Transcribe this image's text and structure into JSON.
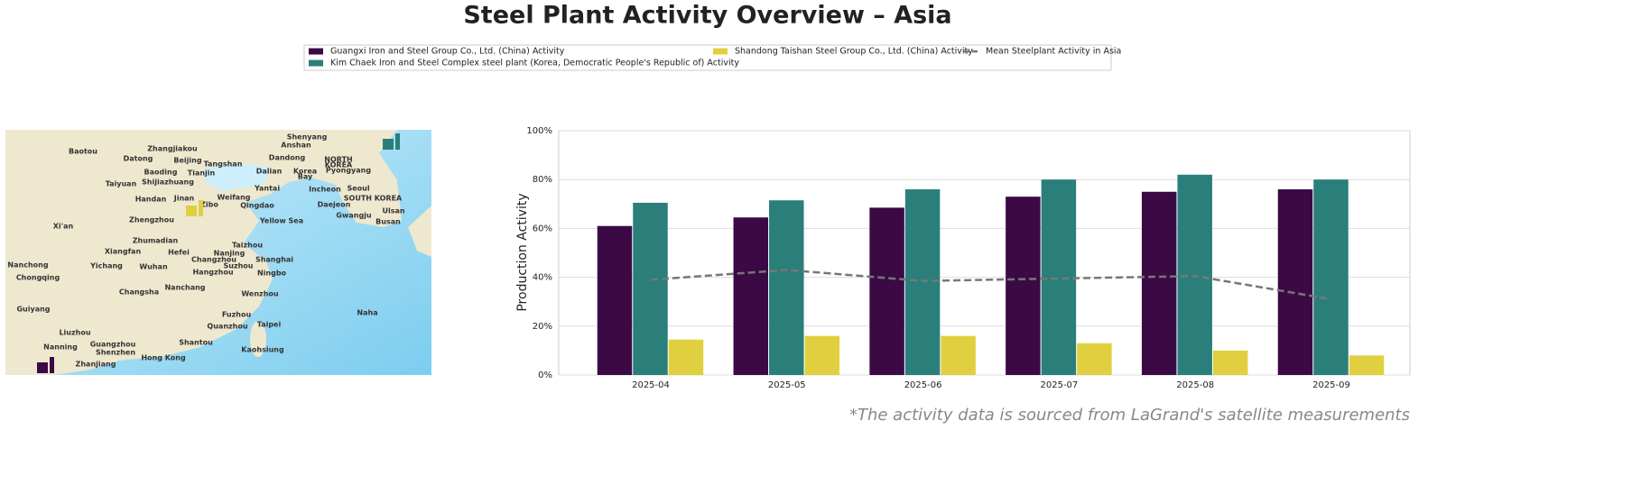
{
  "chart_data": {
    "type": "bar",
    "title": "Steel Plant Activity Overview – Asia",
    "ylabel": "Production Activity",
    "footnote": "*The activity data is sourced from LaGrand's satellite measurements",
    "categories": [
      "2025-04",
      "2025-05",
      "2025-06",
      "2025-07",
      "2025-08",
      "2025-09"
    ],
    "series": [
      {
        "name": "Guangxi Iron and Steel Group Co., Ltd. (China) Activity",
        "color": "#3b0a45",
        "values": [
          61,
          64.5,
          68.5,
          73,
          75,
          76
        ]
      },
      {
        "name": "Kim Chaek Iron and Steel Complex steel plant (Korea, Democratic People's Republic of) Activity",
        "color": "#2a7f7a",
        "values": [
          70.5,
          71.5,
          76,
          80,
          82,
          80
        ]
      },
      {
        "name": "Shandong Taishan Steel Group Co., Ltd. (China) Activity",
        "color": "#e0d040",
        "values": [
          14.5,
          16,
          16,
          13,
          10,
          8
        ]
      },
      {
        "name": "Mean Steelplant Activity in Asia",
        "color": "#777777",
        "mark": "line",
        "dashed": true,
        "values": [
          39,
          43,
          38.5,
          39.5,
          40.5,
          31
        ]
      }
    ],
    "ylim": [
      0,
      100
    ],
    "yticks": [
      {
        "value": 0,
        "label": "0%"
      },
      {
        "value": 20,
        "label": "20%"
      },
      {
        "value": 40,
        "label": "40%"
      },
      {
        "value": 60,
        "label": "60%"
      },
      {
        "value": 80,
        "label": "80%"
      },
      {
        "value": 100,
        "label": "100%"
      }
    ],
    "grid": true,
    "legend": "top"
  },
  "map": {
    "labels": [
      "Baotou",
      "Zhangjiakou",
      "Datong",
      "Beijing",
      "Tangshan",
      "Shenyang",
      "Anshan",
      "Dandong",
      "NORTH",
      "KOREA",
      "Baoding",
      "Tianjin",
      "Dalian",
      "Korea",
      "Bay",
      "Pyongyang",
      "Taiyuan",
      "Shijiazhuang",
      "Yantai",
      "Incheon",
      "Seoul",
      "Handan",
      "Jinan",
      "Weifang",
      "SOUTH KOREA",
      "Zibo",
      "Qingdao",
      "Daejeon",
      "Ulsan",
      "Gwangju",
      "Zhengzhou",
      "Yellow Sea",
      "Busan",
      "Xi'an",
      "Zhumadian",
      "Taizhou",
      "Xiangfan",
      "Hefei",
      "Nanjing",
      "Changzhou",
      "Shanghai",
      "Nanchong",
      "Yichang",
      "Wuhan",
      "Suzhou",
      "Hangzhou",
      "Ningbo",
      "Chongqing",
      "Changsha",
      "Nanchang",
      "Wenzhou",
      "Guiyang",
      "Fuzhou",
      "Naha",
      "Liuzhou",
      "Quanzhou",
      "Taipei",
      "Nanning",
      "Guangzhou",
      "Shantou",
      "Shenzhen",
      "Kaohsiung",
      "Hong Kong",
      "Zhanjiang"
    ]
  }
}
